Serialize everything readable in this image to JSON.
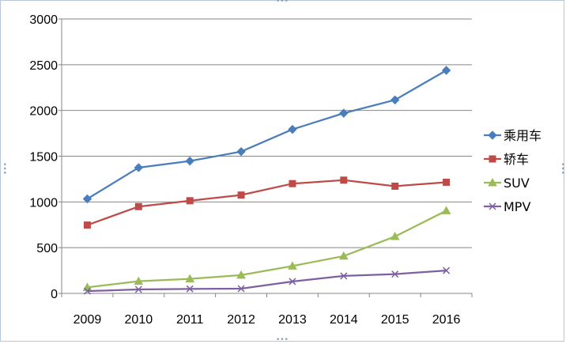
{
  "chart_data": {
    "type": "line",
    "categories": [
      "2009",
      "2010",
      "2011",
      "2012",
      "2013",
      "2014",
      "2015",
      "2016"
    ],
    "ylim": [
      0,
      3000
    ],
    "yticks": [
      "0",
      "500",
      "1000",
      "1500",
      "2000",
      "2500",
      "3000"
    ],
    "grid": true,
    "legend_position": "right",
    "series": [
      {
        "name": "乘用车",
        "color": "#4a7ebb",
        "marker": "diamond",
        "values": [
          1033,
          1375,
          1447,
          1550,
          1793,
          1970,
          2115,
          2438
        ]
      },
      {
        "name": "轿车",
        "color": "#be4b48",
        "marker": "square",
        "values": [
          747,
          949,
          1013,
          1075,
          1200,
          1238,
          1172,
          1215
        ]
      },
      {
        "name": "SUV",
        "color": "#9bbb59",
        "marker": "triangle",
        "values": [
          66,
          133,
          159,
          200,
          299,
          408,
          622,
          904
        ]
      },
      {
        "name": "MPV",
        "color": "#7d60a0",
        "marker": "x",
        "values": [
          25,
          43,
          49,
          52,
          130,
          191,
          211,
          250
        ]
      }
    ]
  }
}
